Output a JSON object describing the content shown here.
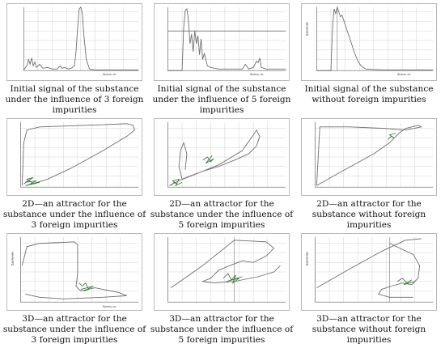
{
  "figure": {
    "panels": [
      {
        "id": "p1",
        "type": "initial-signal",
        "caption": "Initial signal of the substance under the influence of 3 foreign impurities"
      },
      {
        "id": "p2",
        "type": "initial-signal",
        "caption": "Initial signal of the substance under the influence of 5 foreign impurities"
      },
      {
        "id": "p3",
        "type": "initial-signal",
        "caption": "Initial signal of the substance without foreign impurities"
      },
      {
        "id": "p4",
        "type": "attractor-2d",
        "caption": "2D—an attractor for the substance under the influence of 3 foreign impurities"
      },
      {
        "id": "p5",
        "type": "attractor-2d",
        "caption": "2D—an attractor for the substance under the influence of 5 foreign impurities"
      },
      {
        "id": "p6",
        "type": "attractor-2d",
        "caption": "2D—an attractor for the substance without foreign impurities"
      },
      {
        "id": "p7",
        "type": "attractor-3d",
        "caption": "3D—an attractor for the substance under the influence of 3 foreign impurities"
      },
      {
        "id": "p8",
        "type": "attractor-3d",
        "caption": "3D—an attractor for the substance under the influence of 5 foreign impurities"
      },
      {
        "id": "p9",
        "type": "attractor-3d",
        "caption": "3D—an attractor for the substance without foreign impurities"
      }
    ]
  },
  "axis_labels": {
    "x": "Время, мс",
    "y": "Давление"
  }
}
